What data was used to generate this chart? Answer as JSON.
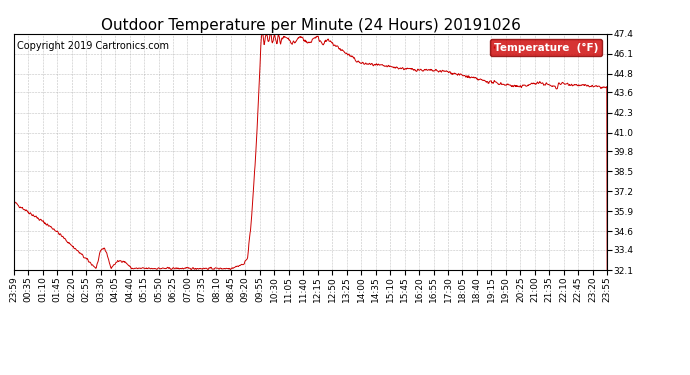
{
  "title": "Outdoor Temperature per Minute (24 Hours) 20191026",
  "copyright": "Copyright 2019 Cartronics.com",
  "legend_label": "Temperature  (°F)",
  "legend_bg": "#cc0000",
  "legend_text_color": "#ffffff",
  "line_color": "#cc0000",
  "bg_color": "#ffffff",
  "plot_bg_color": "#ffffff",
  "grid_color": "#999999",
  "ylim": [
    32.1,
    47.4
  ],
  "yticks": [
    32.1,
    33.4,
    34.6,
    35.9,
    37.2,
    38.5,
    39.8,
    41.0,
    42.3,
    43.6,
    44.8,
    46.1,
    47.4
  ],
  "x_labels": [
    "23:59",
    "00:35",
    "01:10",
    "01:45",
    "02:20",
    "02:55",
    "03:30",
    "04:05",
    "04:40",
    "05:15",
    "05:50",
    "06:25",
    "07:00",
    "07:35",
    "08:10",
    "08:45",
    "09:20",
    "09:55",
    "10:30",
    "11:05",
    "11:40",
    "12:15",
    "12:50",
    "13:25",
    "14:00",
    "14:35",
    "15:10",
    "15:45",
    "16:20",
    "16:55",
    "17:30",
    "18:05",
    "18:40",
    "19:15",
    "19:50",
    "20:25",
    "21:00",
    "21:35",
    "22:10",
    "22:45",
    "23:20",
    "23:55"
  ],
  "title_fontsize": 11,
  "tick_fontsize": 6.5,
  "copyright_fontsize": 7
}
